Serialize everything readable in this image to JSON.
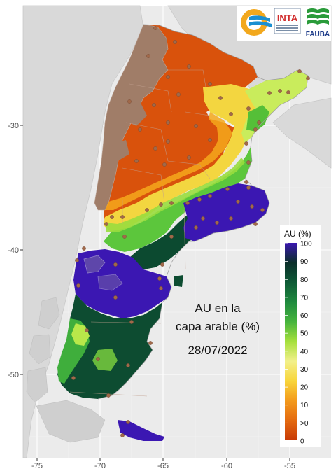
{
  "map": {
    "title_lines": [
      "AU en la",
      "capa arable (%)"
    ],
    "date": "28/07/2022",
    "x_ticks": [
      "-75",
      "-70",
      "-65",
      "-60",
      "-55"
    ],
    "y_ticks": [
      "-30",
      "-40",
      "-50"
    ],
    "colors": {
      "panel_bg": "#ebebeb",
      "grid": "#ffffff",
      "orange": "#d94f0a",
      "brown": "#9e7b67",
      "yellow": "#f4e04d",
      "green": "#2e9c3c",
      "dark_green": "#0a3d2a",
      "violet": "#3a1fa6"
    }
  },
  "legend": {
    "title": "AU (%)",
    "labels": [
      "100",
      "90",
      "80",
      "70",
      "60",
      "50",
      "40",
      "30",
      "20",
      "10",
      ">0",
      "0"
    ]
  },
  "logos": {
    "inta": "INTA",
    "fauba": "FAUBA"
  }
}
